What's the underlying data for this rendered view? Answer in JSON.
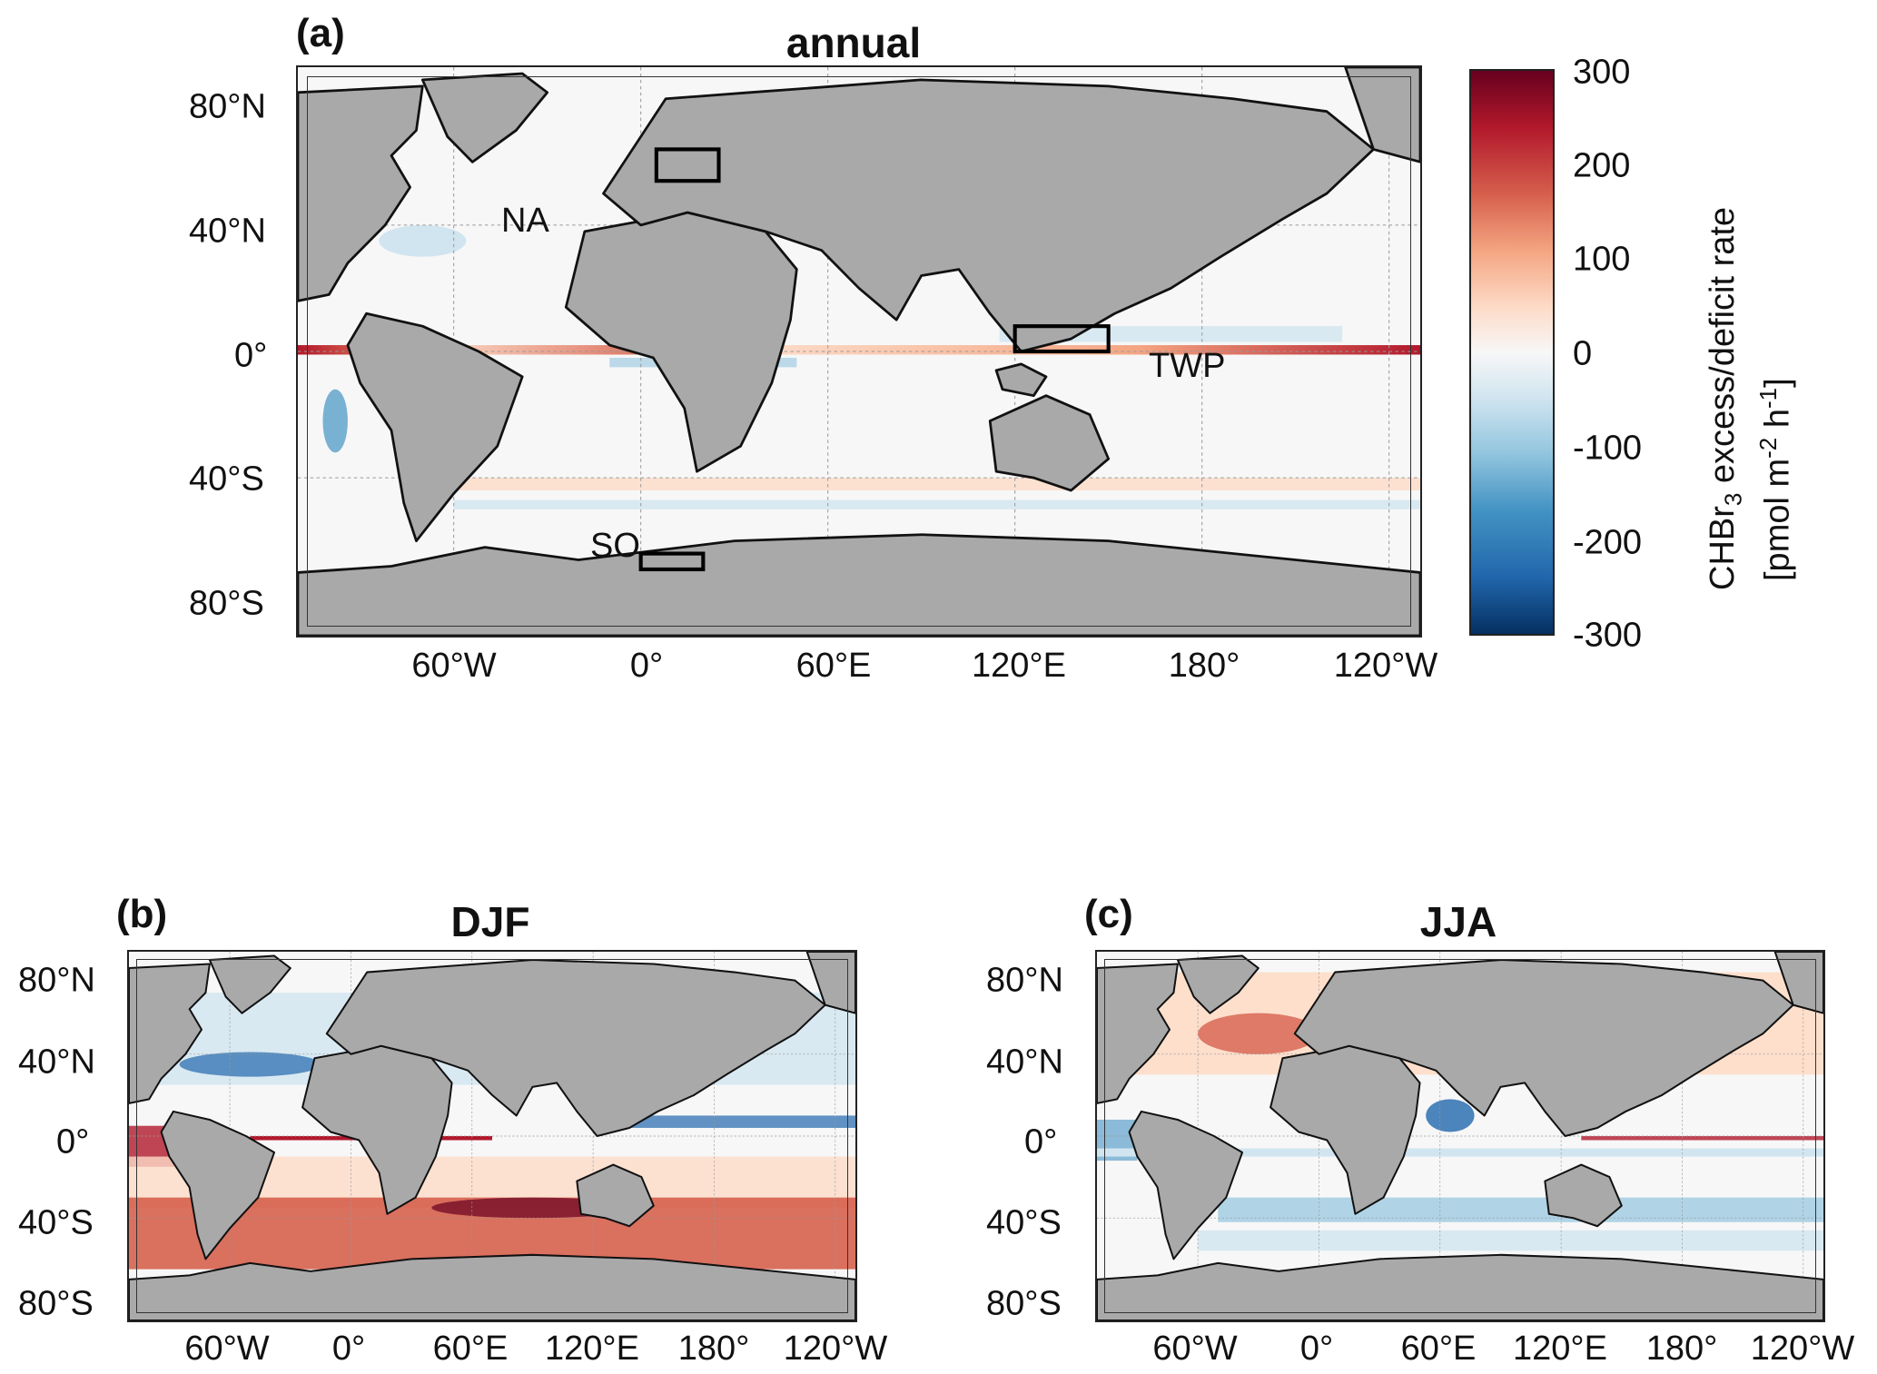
{
  "panels": {
    "a": {
      "label": "(a)",
      "title": "annual"
    },
    "b": {
      "label": "(b)",
      "title": "DJF"
    },
    "c": {
      "label": "(c)",
      "title": "JJA"
    }
  },
  "lon_ticks": [
    "60°W",
    "0°",
    "60°E",
    "120°E",
    "180°",
    "120°W"
  ],
  "lat_ticks": [
    "80°N",
    "40°N",
    "0°",
    "40°S",
    "80°S"
  ],
  "regions": [
    "NA",
    "TWP",
    "SO"
  ],
  "colorbar": {
    "ticks": [
      "300",
      "200",
      "100",
      "0",
      "-100",
      "-200",
      "-300"
    ],
    "range": [
      -300,
      300
    ],
    "label_line1": "CHBr",
    "label_sub": "3",
    "label_line1_rest": " excess/deficit rate",
    "label_line2_pre": "[pmol m",
    "label_sup1": "-2",
    "label_mid": " h",
    "label_sup2": "-1",
    "label_post": "]",
    "colors": [
      "#053061",
      "#2166ac",
      "#4393c3",
      "#92c5de",
      "#d1e5f0",
      "#f7f7f7",
      "#fddbc7",
      "#f4a582",
      "#d6604d",
      "#b2182b",
      "#67001f"
    ]
  },
  "colors": {
    "land": "#a9a9a9",
    "ocean": "#f7f7f7",
    "coast": "#111111"
  }
}
